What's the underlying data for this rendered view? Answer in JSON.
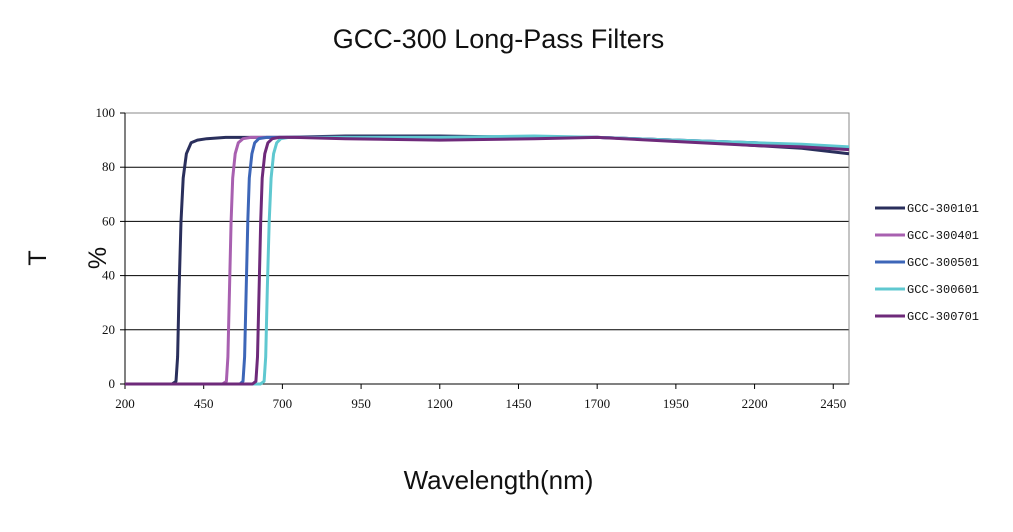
{
  "chart_data": {
    "type": "line",
    "title": "GCC-300 Long-Pass Filters",
    "xlabel": "Wavelength(nm)",
    "ylabel": "T %",
    "xlim": [
      200,
      2500
    ],
    "ylim": [
      0,
      100
    ],
    "xticks": [
      200,
      450,
      700,
      950,
      1200,
      1450,
      1700,
      1950,
      2200,
      2450
    ],
    "yticks": [
      0,
      20,
      40,
      60,
      80,
      100
    ],
    "grid": "horizontal",
    "legend": "right",
    "series": [
      {
        "name": "GCC-300101",
        "color": "#2a2f5c",
        "x": [
          200,
          350,
          362,
          367,
          372,
          378,
          385,
          395,
          410,
          430,
          460,
          520,
          700,
          900,
          1200,
          1500,
          1700,
          1950,
          2200,
          2350,
          2500
        ],
        "y": [
          0,
          0,
          1,
          10,
          35,
          60,
          76,
          85,
          89,
          90,
          90.5,
          91,
          91,
          91.5,
          91.5,
          91,
          91,
          90,
          88,
          87,
          85
        ]
      },
      {
        "name": "GCC-300401",
        "color": "#a860b0",
        "x": [
          200,
          510,
          522,
          527,
          532,
          537,
          542,
          550,
          560,
          575,
          600,
          700,
          900,
          1200,
          1500,
          1700,
          1950,
          2200,
          2350,
          2500
        ],
        "y": [
          0,
          0,
          1,
          10,
          35,
          60,
          76,
          85,
          89,
          90.5,
          91,
          91,
          91,
          90.5,
          91,
          91,
          90,
          89,
          88,
          87
        ]
      },
      {
        "name": "GCC-300501",
        "color": "#3d66b8",
        "x": [
          200,
          565,
          575,
          580,
          585,
          590,
          595,
          603,
          612,
          625,
          650,
          700,
          900,
          1200,
          1500,
          1700,
          1950,
          2200,
          2350,
          2500
        ],
        "y": [
          0,
          0,
          1,
          10,
          35,
          60,
          76,
          85,
          89,
          90.5,
          91,
          91,
          91,
          91,
          91,
          91,
          90,
          89,
          88,
          87
        ]
      },
      {
        "name": "GCC-300601",
        "color": "#5fc8d0",
        "x": [
          200,
          630,
          642,
          647,
          652,
          658,
          664,
          672,
          682,
          695,
          720,
          760,
          900,
          1200,
          1500,
          1700,
          1950,
          2200,
          2350,
          2500
        ],
        "y": [
          0,
          0,
          1,
          10,
          35,
          60,
          76,
          85,
          89,
          90.5,
          91,
          91,
          91,
          91,
          91.5,
          91,
          90,
          89,
          88.5,
          87.5
        ]
      },
      {
        "name": "GCC-300701",
        "color": "#6e2a7a",
        "x": [
          200,
          605,
          616,
          621,
          626,
          631,
          636,
          644,
          654,
          668,
          690,
          740,
          900,
          1200,
          1500,
          1700,
          1950,
          2200,
          2350,
          2500
        ],
        "y": [
          0,
          0,
          1,
          10,
          35,
          60,
          76,
          85,
          89,
          90.5,
          91,
          91,
          90.5,
          90,
          90.5,
          91,
          89.5,
          88,
          87.5,
          86.5
        ]
      }
    ]
  }
}
